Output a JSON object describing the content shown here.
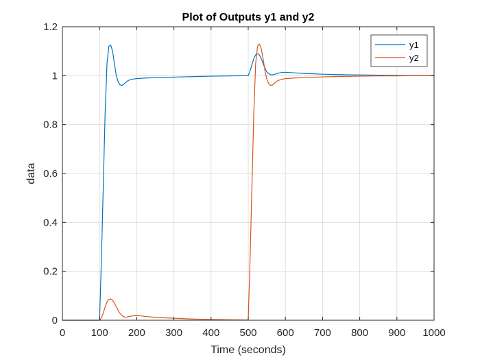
{
  "chart_data": {
    "type": "line",
    "title": "Plot of Outputs y1 and y2",
    "xlabel": "Time (seconds)",
    "ylabel": "data",
    "xlim": [
      0,
      1000
    ],
    "ylim": [
      0,
      1.2
    ],
    "xticks": [
      0,
      100,
      200,
      300,
      400,
      500,
      600,
      700,
      800,
      900,
      1000
    ],
    "yticks": [
      0,
      0.2,
      0.4,
      0.6,
      0.8,
      1,
      1.2
    ],
    "xtick_labels": [
      "0",
      "100",
      "200",
      "300",
      "400",
      "500",
      "600",
      "700",
      "800",
      "900",
      "1000"
    ],
    "ytick_labels": [
      "0",
      "0.2",
      "0.4",
      "0.6",
      "0.8",
      "1",
      "1.2"
    ],
    "grid": true,
    "legend_position": "top-right",
    "series": [
      {
        "name": "y1",
        "color": "#0072BD",
        "x": [
          0,
          100,
          105,
          110,
          115,
          120,
          125,
          130,
          135,
          140,
          145,
          150,
          155,
          160,
          165,
          170,
          175,
          180,
          190,
          200,
          220,
          250,
          300,
          350,
          400,
          450,
          500,
          505,
          510,
          515,
          520,
          525,
          530,
          535,
          540,
          545,
          550,
          555,
          560,
          565,
          570,
          580,
          590,
          600,
          620,
          650,
          700,
          750,
          800,
          850,
          900,
          950,
          1000
        ],
        "y": [
          0,
          0,
          0.25,
          0.55,
          0.85,
          1.05,
          1.12,
          1.125,
          1.1,
          1.05,
          1.0,
          0.975,
          0.962,
          0.96,
          0.965,
          0.972,
          0.978,
          0.982,
          0.986,
          0.988,
          0.99,
          0.992,
          0.994,
          0.996,
          0.998,
          0.999,
          1.0,
          1.02,
          1.045,
          1.07,
          1.085,
          1.09,
          1.085,
          1.07,
          1.05,
          1.03,
          1.015,
          1.008,
          1.004,
          1.003,
          1.005,
          1.01,
          1.013,
          1.014,
          1.012,
          1.009,
          1.006,
          1.004,
          1.003,
          1.002,
          1.001,
          1.0,
          1.0
        ]
      },
      {
        "name": "y2",
        "color": "#D95319",
        "x": [
          0,
          100,
          105,
          110,
          115,
          120,
          125,
          130,
          135,
          140,
          145,
          150,
          155,
          160,
          165,
          170,
          180,
          190,
          200,
          210,
          220,
          250,
          300,
          350,
          400,
          450,
          500,
          505,
          510,
          515,
          520,
          525,
          530,
          535,
          540,
          545,
          550,
          555,
          560,
          565,
          570,
          575,
          580,
          590,
          600,
          620,
          650,
          700,
          750,
          800,
          850,
          900,
          950,
          1000
        ],
        "y": [
          0,
          0,
          0.01,
          0.03,
          0.055,
          0.075,
          0.085,
          0.087,
          0.082,
          0.07,
          0.055,
          0.04,
          0.028,
          0.02,
          0.014,
          0.012,
          0.015,
          0.018,
          0.019,
          0.018,
          0.016,
          0.012,
          0.008,
          0.005,
          0.003,
          0.002,
          0.001,
          0.25,
          0.55,
          0.85,
          1.05,
          1.12,
          1.13,
          1.11,
          1.07,
          1.02,
          0.985,
          0.968,
          0.96,
          0.962,
          0.968,
          0.975,
          0.98,
          0.985,
          0.988,
          0.99,
          0.992,
          0.995,
          0.997,
          0.998,
          0.999,
          0.999,
          1.0,
          1.0
        ]
      }
    ]
  }
}
